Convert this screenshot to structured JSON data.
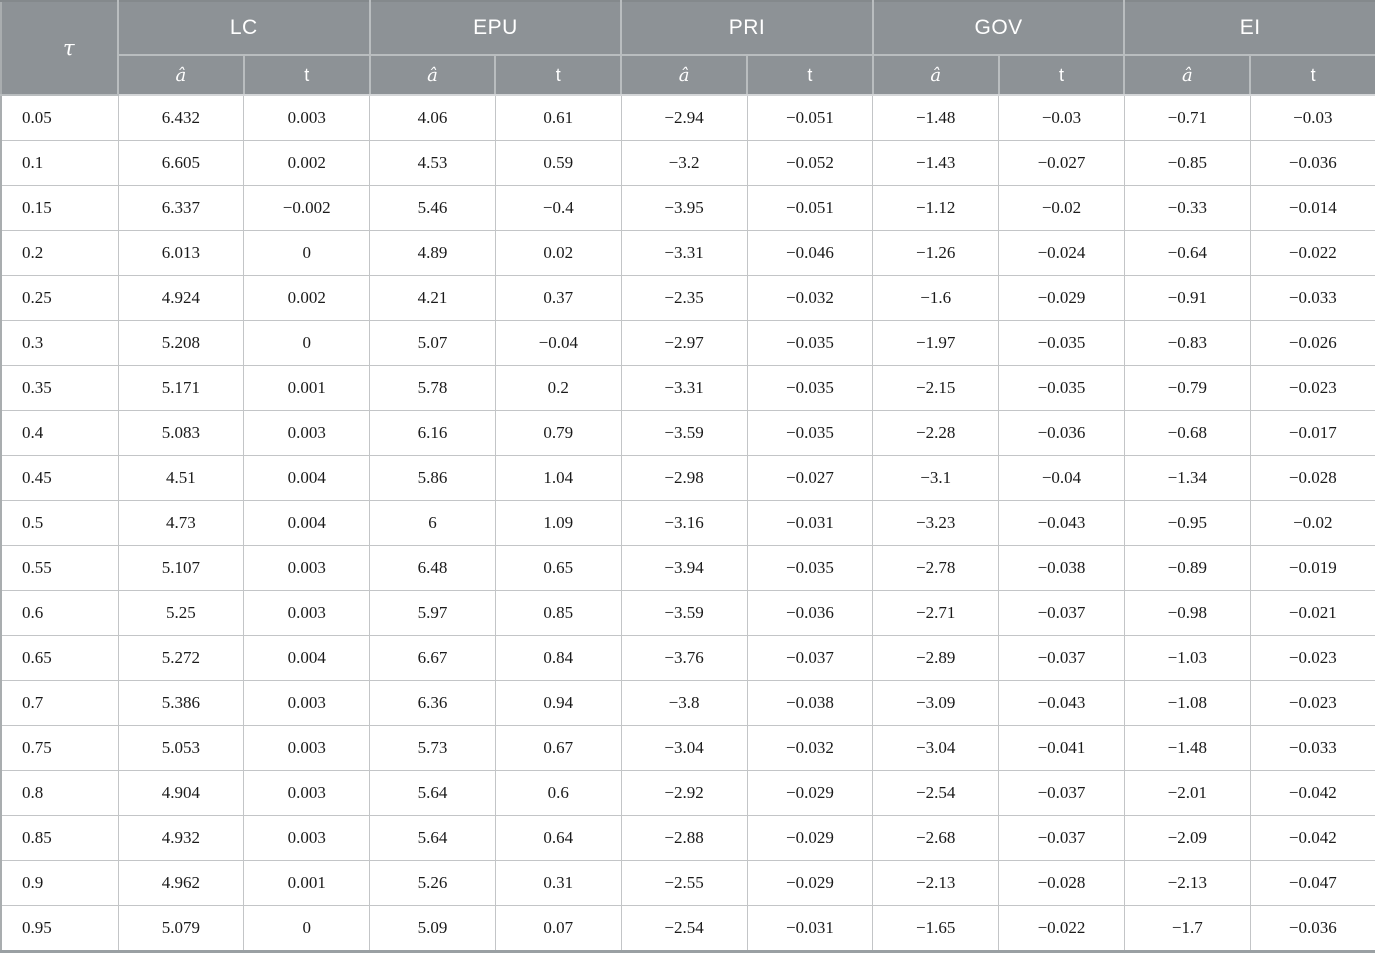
{
  "table": {
    "header_bg": "#8d9296",
    "tau_header": "τ",
    "groups": [
      {
        "label": "LC"
      },
      {
        "label": "EPU"
      },
      {
        "label": "PRI"
      },
      {
        "label": "GOV"
      },
      {
        "label": "EI"
      }
    ],
    "subheaders": {
      "a_hat": "â",
      "t": "t"
    },
    "rows": [
      {
        "tau": "0.05",
        "values": [
          "6.432",
          "0.003",
          "4.06",
          "0.61",
          "−2.94",
          "−0.051",
          "−1.48",
          "−0.03",
          "−0.71",
          "−0.03"
        ]
      },
      {
        "tau": "0.1",
        "values": [
          "6.605",
          "0.002",
          "4.53",
          "0.59",
          "−3.2",
          "−0.052",
          "−1.43",
          "−0.027",
          "−0.85",
          "−0.036"
        ]
      },
      {
        "tau": "0.15",
        "values": [
          "6.337",
          "−0.002",
          "5.46",
          "−0.4",
          "−3.95",
          "−0.051",
          "−1.12",
          "−0.02",
          "−0.33",
          "−0.014"
        ]
      },
      {
        "tau": "0.2",
        "values": [
          "6.013",
          "0",
          "4.89",
          "0.02",
          "−3.31",
          "−0.046",
          "−1.26",
          "−0.024",
          "−0.64",
          "−0.022"
        ]
      },
      {
        "tau": "0.25",
        "values": [
          "4.924",
          "0.002",
          "4.21",
          "0.37",
          "−2.35",
          "−0.032",
          "−1.6",
          "−0.029",
          "−0.91",
          "−0.033"
        ]
      },
      {
        "tau": "0.3",
        "values": [
          "5.208",
          "0",
          "5.07",
          "−0.04",
          "−2.97",
          "−0.035",
          "−1.97",
          "−0.035",
          "−0.83",
          "−0.026"
        ]
      },
      {
        "tau": "0.35",
        "values": [
          "5.171",
          "0.001",
          "5.78",
          "0.2",
          "−3.31",
          "−0.035",
          "−2.15",
          "−0.035",
          "−0.79",
          "−0.023"
        ]
      },
      {
        "tau": "0.4",
        "values": [
          "5.083",
          "0.003",
          "6.16",
          "0.79",
          "−3.59",
          "−0.035",
          "−2.28",
          "−0.036",
          "−0.68",
          "−0.017"
        ]
      },
      {
        "tau": "0.45",
        "values": [
          "4.51",
          "0.004",
          "5.86",
          "1.04",
          "−2.98",
          "−0.027",
          "−3.1",
          "−0.04",
          "−1.34",
          "−0.028"
        ]
      },
      {
        "tau": "0.5",
        "values": [
          "4.73",
          "0.004",
          "6",
          "1.09",
          "−3.16",
          "−0.031",
          "−3.23",
          "−0.043",
          "−0.95",
          "−0.02"
        ]
      },
      {
        "tau": "0.55",
        "values": [
          "5.107",
          "0.003",
          "6.48",
          "0.65",
          "−3.94",
          "−0.035",
          "−2.78",
          "−0.038",
          "−0.89",
          "−0.019"
        ]
      },
      {
        "tau": "0.6",
        "values": [
          "5.25",
          "0.003",
          "5.97",
          "0.85",
          "−3.59",
          "−0.036",
          "−2.71",
          "−0.037",
          "−0.98",
          "−0.021"
        ]
      },
      {
        "tau": "0.65",
        "values": [
          "5.272",
          "0.004",
          "6.67",
          "0.84",
          "−3.76",
          "−0.037",
          "−2.89",
          "−0.037",
          "−1.03",
          "−0.023"
        ]
      },
      {
        "tau": "0.7",
        "values": [
          "5.386",
          "0.003",
          "6.36",
          "0.94",
          "−3.8",
          "−0.038",
          "−3.09",
          "−0.043",
          "−1.08",
          "−0.023"
        ]
      },
      {
        "tau": "0.75",
        "values": [
          "5.053",
          "0.003",
          "5.73",
          "0.67",
          "−3.04",
          "−0.032",
          "−3.04",
          "−0.041",
          "−1.48",
          "−0.033"
        ]
      },
      {
        "tau": "0.8",
        "values": [
          "4.904",
          "0.003",
          "5.64",
          "0.6",
          "−2.92",
          "−0.029",
          "−2.54",
          "−0.037",
          "−2.01",
          "−0.042"
        ]
      },
      {
        "tau": "0.85",
        "values": [
          "4.932",
          "0.003",
          "5.64",
          "0.64",
          "−2.88",
          "−0.029",
          "−2.68",
          "−0.037",
          "−2.09",
          "−0.042"
        ]
      },
      {
        "tau": "0.9",
        "values": [
          "4.962",
          "0.001",
          "5.26",
          "0.31",
          "−2.55",
          "−0.029",
          "−2.13",
          "−0.028",
          "−2.13",
          "−0.047"
        ]
      },
      {
        "tau": "0.95",
        "values": [
          "5.079",
          "0",
          "5.09",
          "0.07",
          "−2.54",
          "−0.031",
          "−1.65",
          "−0.022",
          "−1.7",
          "−0.036"
        ]
      }
    ]
  }
}
